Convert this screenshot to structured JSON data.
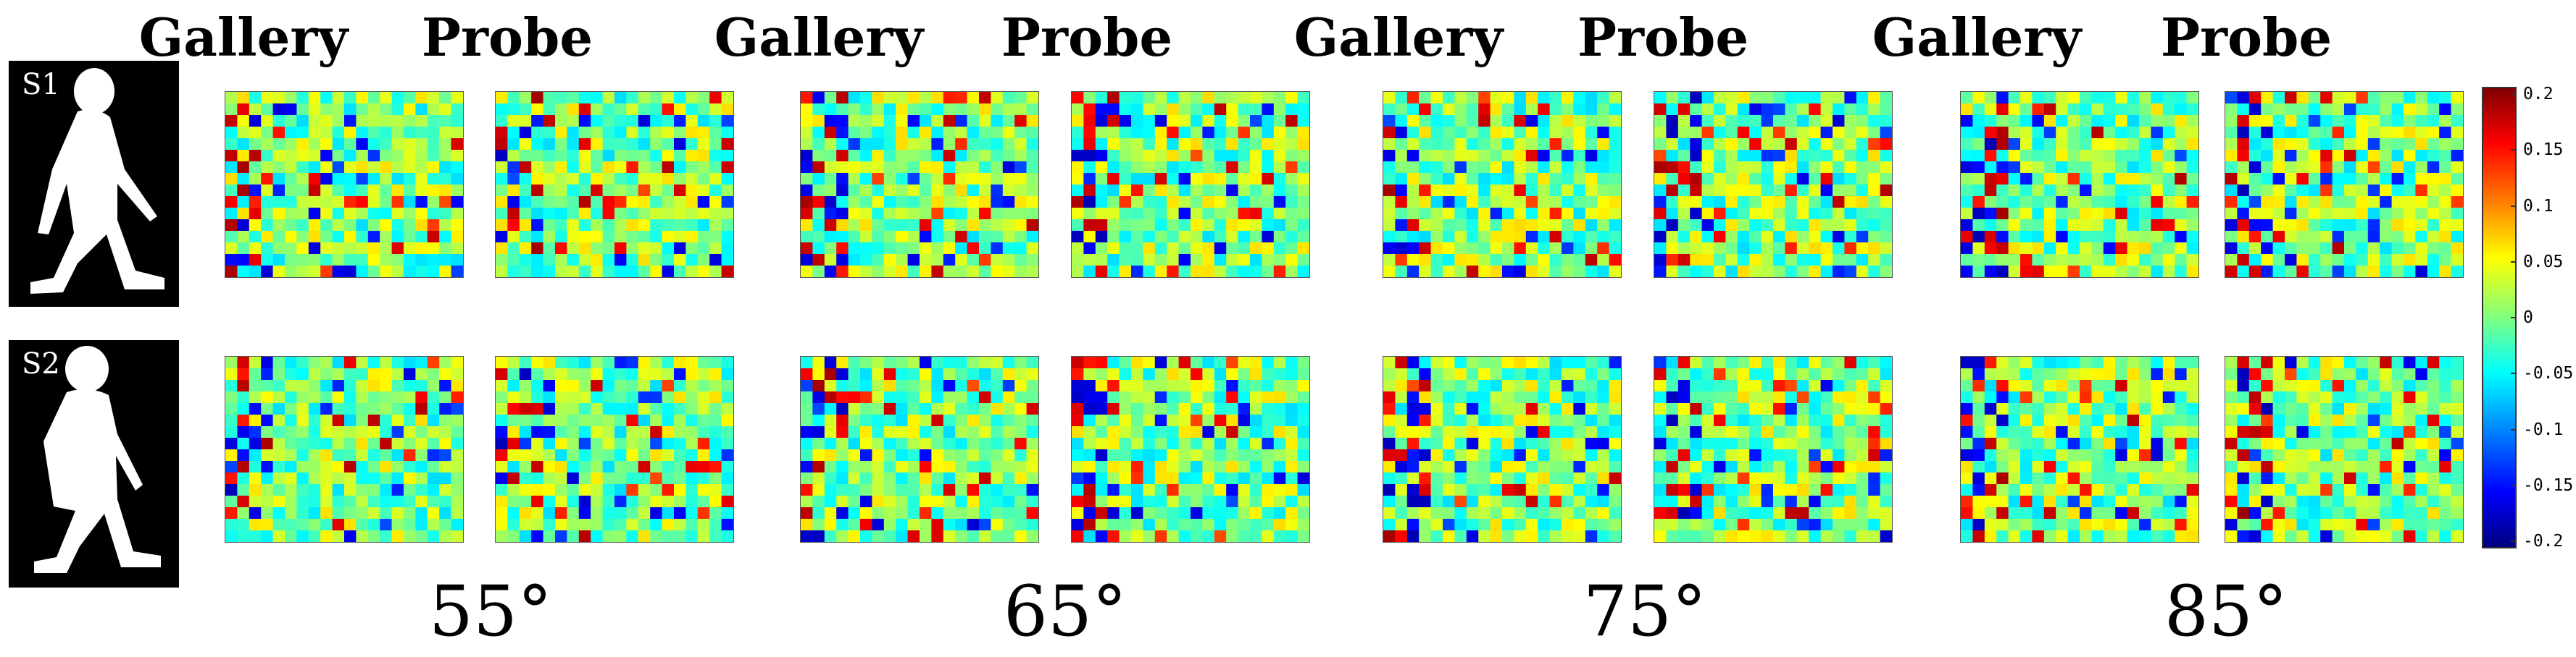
{
  "columns": [
    "Gallery",
    "Probe",
    "Gallery",
    "Probe",
    "Gallery",
    "Probe",
    "Gallery",
    "Probe"
  ],
  "angles": [
    "55°",
    "65°",
    "75°",
    "85°"
  ],
  "subjects": [
    "S1",
    "S2"
  ],
  "colorbar": {
    "ticks": [
      "0.2",
      "0.15",
      "0.1",
      "0.05",
      "0",
      "-0.05",
      "-0.1",
      "-0.15",
      "-0.2"
    ],
    "range": [
      -0.2,
      0.2
    ],
    "colormap": "jet"
  }
}
